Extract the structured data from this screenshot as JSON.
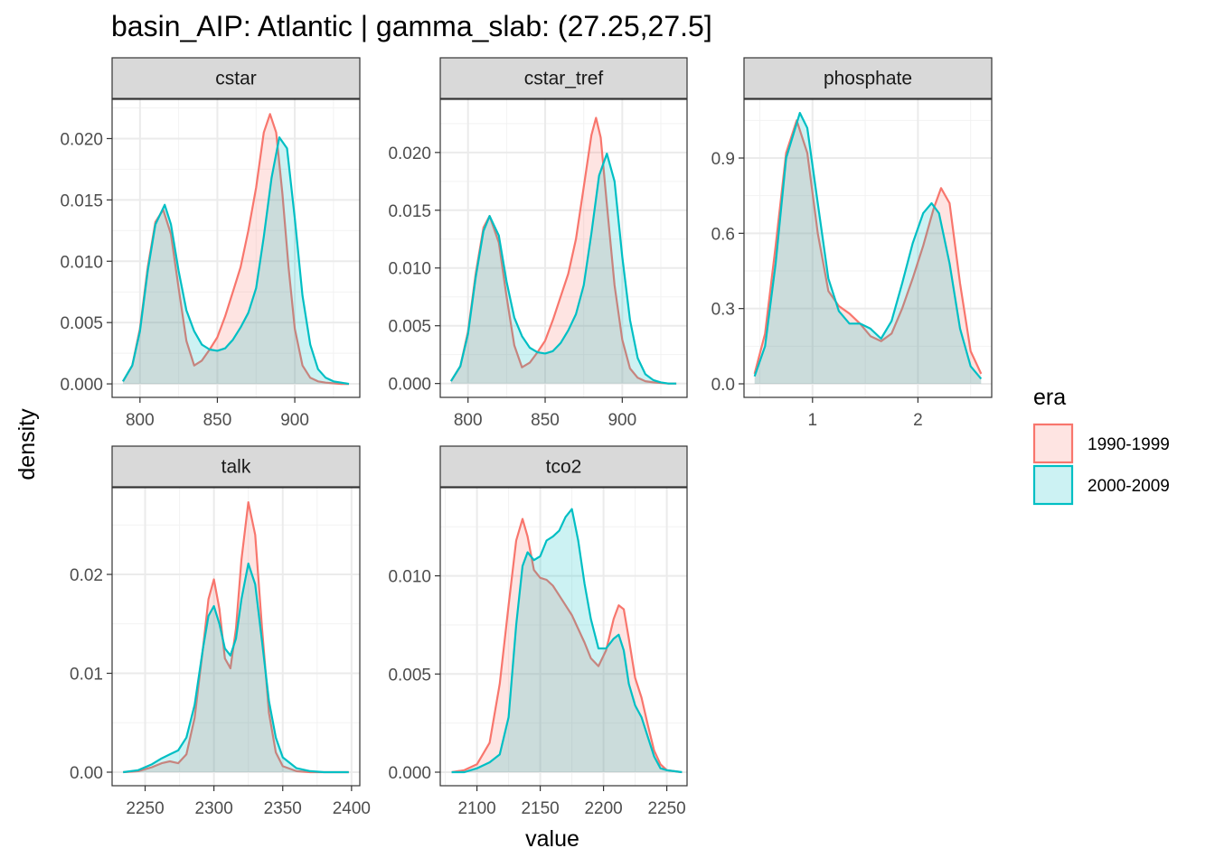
{
  "chart_data": {
    "type": "area",
    "title": "basin_AIP: Atlantic | gamma_slab: (27.25,27.5]",
    "xlabel": "value",
    "ylabel": "density",
    "grid": true,
    "legend": {
      "title": "era",
      "position": "right",
      "entries": [
        {
          "name": "1990-1999",
          "color": "#F8766D",
          "fill": "#F8766D"
        },
        {
          "name": "2000-2009",
          "color": "#00BFC4",
          "fill": "#00BFC4"
        }
      ]
    },
    "panels": [
      {
        "label": "cstar",
        "xlim": [
          782,
          942
        ],
        "ylim": [
          -0.0011,
          0.0232
        ],
        "xticks": [
          800,
          850,
          900
        ],
        "yticks": [
          0.0,
          0.005,
          0.01,
          0.015,
          0.02
        ],
        "ytick_labels": [
          "0.000",
          "0.005",
          "0.010",
          "0.015",
          "0.020"
        ],
        "series": [
          {
            "name": "1990-1999",
            "x": [
              789,
              795,
              800,
              805,
              810,
              815,
              820,
              825,
              830,
              835,
              840,
              845,
              850,
              855,
              860,
              865,
              870,
              875,
              880,
              884,
              888,
              892,
              896,
              900,
              905,
              910,
              915,
              920,
              930,
              935
            ],
            "y": [
              0.0002,
              0.0015,
              0.0045,
              0.0095,
              0.0132,
              0.0142,
              0.0122,
              0.0078,
              0.0035,
              0.0015,
              0.0019,
              0.0028,
              0.0038,
              0.0055,
              0.0075,
              0.0095,
              0.0125,
              0.016,
              0.0205,
              0.022,
              0.0205,
              0.0155,
              0.0095,
              0.0045,
              0.0015,
              0.0005,
              0.0002,
              0.0001,
              0.0,
              0.0
            ]
          },
          {
            "name": "2000-2009",
            "x": [
              789,
              795,
              800,
              805,
              810,
              816,
              820,
              825,
              830,
              835,
              840,
              845,
              850,
              855,
              860,
              865,
              870,
              875,
              880,
              885,
              890,
              895,
              900,
              905,
              910,
              915,
              920,
              925,
              930,
              935
            ],
            "y": [
              0.0002,
              0.0015,
              0.0043,
              0.0092,
              0.013,
              0.0146,
              0.013,
              0.0092,
              0.006,
              0.0043,
              0.0032,
              0.0028,
              0.0027,
              0.0029,
              0.0036,
              0.0046,
              0.0058,
              0.0078,
              0.012,
              0.0168,
              0.0201,
              0.0192,
              0.0135,
              0.0072,
              0.0032,
              0.0012,
              0.0005,
              0.0002,
              0.0001,
              0.0
            ]
          }
        ]
      },
      {
        "label": "cstar_tref",
        "xlim": [
          782,
          942
        ],
        "ylim": [
          -0.0012,
          0.0246
        ],
        "xticks": [
          800,
          850,
          900
        ],
        "yticks": [
          0.0,
          0.005,
          0.01,
          0.015,
          0.02
        ],
        "ytick_labels": [
          "0.000",
          "0.005",
          "0.010",
          "0.015",
          "0.020"
        ],
        "series": [
          {
            "name": "1990-1999",
            "x": [
              789,
              795,
              800,
              805,
              810,
              814,
              820,
              825,
              830,
              835,
              840,
              845,
              850,
              855,
              860,
              865,
              870,
              875,
              880,
              883,
              886,
              890,
              895,
              900,
              905,
              910,
              915,
              920,
              930,
              935
            ],
            "y": [
              0.0002,
              0.0015,
              0.0045,
              0.0095,
              0.0135,
              0.0145,
              0.0122,
              0.0075,
              0.0033,
              0.0014,
              0.0018,
              0.0027,
              0.0037,
              0.0055,
              0.0075,
              0.0095,
              0.0125,
              0.017,
              0.0215,
              0.023,
              0.0213,
              0.0155,
              0.0085,
              0.0038,
              0.0013,
              0.0005,
              0.0002,
              0.0001,
              0.0,
              0.0
            ]
          },
          {
            "name": "2000-2009",
            "x": [
              789,
              795,
              800,
              805,
              810,
              814,
              820,
              825,
              830,
              835,
              840,
              845,
              850,
              855,
              860,
              865,
              870,
              875,
              880,
              885,
              890,
              895,
              900,
              905,
              910,
              915,
              920,
              925,
              930,
              935
            ],
            "y": [
              0.0002,
              0.0015,
              0.0043,
              0.0092,
              0.0132,
              0.0145,
              0.0128,
              0.0088,
              0.0057,
              0.0041,
              0.0031,
              0.0027,
              0.0026,
              0.0028,
              0.0035,
              0.0046,
              0.006,
              0.0085,
              0.013,
              0.018,
              0.0199,
              0.0175,
              0.011,
              0.0055,
              0.0022,
              0.0008,
              0.0003,
              0.0001,
              0.0,
              0.0
            ]
          }
        ]
      },
      {
        "label": "phosphate",
        "xlim": [
          0.35,
          2.7
        ],
        "ylim": [
          -0.054,
          1.134
        ],
        "xticks": [
          1,
          2
        ],
        "yticks": [
          0.0,
          0.3,
          0.6,
          0.9
        ],
        "ytick_labels": [
          "0.0",
          "0.3",
          "0.6",
          "0.9"
        ],
        "series": [
          {
            "name": "1990-1999",
            "x": [
              0.45,
              0.55,
              0.65,
              0.75,
              0.85,
              0.95,
              1.05,
              1.15,
              1.25,
              1.35,
              1.45,
              1.55,
              1.65,
              1.75,
              1.85,
              1.95,
              2.05,
              2.15,
              2.22,
              2.3,
              2.4,
              2.5,
              2.6
            ],
            "y": [
              0.04,
              0.2,
              0.55,
              0.92,
              1.05,
              0.92,
              0.6,
              0.37,
              0.31,
              0.28,
              0.24,
              0.19,
              0.17,
              0.2,
              0.3,
              0.42,
              0.55,
              0.7,
              0.78,
              0.72,
              0.4,
              0.13,
              0.04
            ]
          },
          {
            "name": "2000-2009",
            "x": [
              0.45,
              0.55,
              0.65,
              0.75,
              0.88,
              0.95,
              1.05,
              1.15,
              1.25,
              1.35,
              1.45,
              1.55,
              1.65,
              1.75,
              1.85,
              1.95,
              2.05,
              2.13,
              2.2,
              2.3,
              2.4,
              2.5,
              2.6
            ],
            "y": [
              0.03,
              0.15,
              0.48,
              0.9,
              1.08,
              1.02,
              0.72,
              0.42,
              0.29,
              0.24,
              0.24,
              0.22,
              0.18,
              0.25,
              0.4,
              0.56,
              0.68,
              0.72,
              0.68,
              0.48,
              0.22,
              0.07,
              0.02
            ]
          }
        ]
      },
      {
        "label": "talk",
        "xlim": [
          2226,
          2406
        ],
        "ylim": [
          -0.00137,
          0.02877
        ],
        "xticks": [
          2250,
          2300,
          2350,
          2400
        ],
        "yticks": [
          0.0,
          0.01,
          0.02
        ],
        "ytick_labels": [
          "0.00",
          "0.01",
          "0.02"
        ],
        "series": [
          {
            "name": "1990-1999",
            "x": [
              2234,
              2245,
              2255,
              2262,
              2268,
              2274,
              2280,
              2286,
              2292,
              2296,
              2300,
              2304,
              2308,
              2312,
              2316,
              2320,
              2325,
              2330,
              2335,
              2340,
              2345,
              2350,
              2360,
              2370,
              2380,
              2390,
              2398
            ],
            "y": [
              0.0,
              0.0001,
              0.0005,
              0.0009,
              0.0011,
              0.0009,
              0.0018,
              0.0055,
              0.0125,
              0.0175,
              0.0195,
              0.0165,
              0.0115,
              0.0105,
              0.0145,
              0.0215,
              0.0273,
              0.024,
              0.0145,
              0.006,
              0.002,
              0.0006,
              0.0001,
              0.0,
              0.0,
              0.0,
              0.0
            ]
          },
          {
            "name": "2000-2009",
            "x": [
              2234,
              2245,
              2255,
              2262,
              2268,
              2274,
              2280,
              2286,
              2292,
              2296,
              2300,
              2304,
              2308,
              2312,
              2316,
              2320,
              2325,
              2330,
              2335,
              2340,
              2345,
              2350,
              2360,
              2370,
              2380,
              2390,
              2398
            ],
            "y": [
              0.0,
              0.0002,
              0.0008,
              0.0014,
              0.0018,
              0.0022,
              0.0035,
              0.0068,
              0.0125,
              0.0158,
              0.0168,
              0.015,
              0.0125,
              0.0118,
              0.0135,
              0.0175,
              0.0211,
              0.019,
              0.0132,
              0.0072,
              0.0035,
              0.0015,
              0.0004,
              0.0001,
              0.0,
              0.0,
              0.0
            ]
          }
        ]
      },
      {
        "label": "tco2",
        "xlim": [
          2071,
          2266
        ],
        "ylim": [
          -0.00069,
          0.01449
        ],
        "xticks": [
          2100,
          2150,
          2200,
          2250
        ],
        "yticks": [
          0.0,
          0.005,
          0.01
        ],
        "ytick_labels": [
          "0.000",
          "0.005",
          "0.010"
        ],
        "series": [
          {
            "name": "1990-1999",
            "x": [
              2080,
              2090,
              2100,
              2110,
              2118,
              2125,
              2131,
              2136,
              2140,
              2145,
              2150,
              2155,
              2160,
              2165,
              2170,
              2175,
              2180,
              2185,
              2190,
              2196,
              2202,
              2208,
              2212,
              2216,
              2220,
              2225,
              2230,
              2235,
              2240,
              2245,
              2250,
              2262
            ],
            "y": [
              0.0,
              0.0001,
              0.0004,
              0.0015,
              0.0045,
              0.0085,
              0.0118,
              0.0129,
              0.012,
              0.0103,
              0.0099,
              0.0098,
              0.0095,
              0.009,
              0.0085,
              0.008,
              0.0073,
              0.0066,
              0.0058,
              0.0054,
              0.0062,
              0.0078,
              0.0085,
              0.0083,
              0.0068,
              0.0048,
              0.0038,
              0.0024,
              0.0011,
              0.0004,
              0.0001,
              0.0
            ]
          },
          {
            "name": "2000-2009",
            "x": [
              2080,
              2090,
              2100,
              2110,
              2118,
              2125,
              2131,
              2136,
              2140,
              2145,
              2150,
              2155,
              2160,
              2165,
              2170,
              2175,
              2180,
              2185,
              2190,
              2196,
              2202,
              2208,
              2212,
              2216,
              2220,
              2225,
              2230,
              2235,
              2240,
              2245,
              2250,
              2262
            ],
            "y": [
              0.0,
              0.0,
              0.0002,
              0.0005,
              0.0009,
              0.0028,
              0.0075,
              0.0105,
              0.0112,
              0.0108,
              0.011,
              0.0118,
              0.012,
              0.0123,
              0.013,
              0.0134,
              0.0118,
              0.0096,
              0.0078,
              0.0063,
              0.0063,
              0.0068,
              0.007,
              0.0062,
              0.0045,
              0.0034,
              0.0028,
              0.0018,
              0.0008,
              0.0002,
              0.0001,
              0.0
            ]
          }
        ]
      }
    ]
  }
}
